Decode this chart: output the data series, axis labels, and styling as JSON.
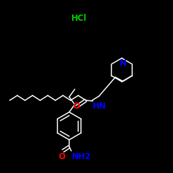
{
  "background_color": "#000000",
  "bond_color": "#ffffff",
  "N_color": "#0000ff",
  "O_color": "#ff0000",
  "HCl_color": "#00cc00",
  "label_HCl": "HCl",
  "label_N": "N",
  "label_O1": "O",
  "label_NH": "HN",
  "label_O2": "O",
  "label_NH2": "NH2",
  "figsize": [
    2.5,
    2.5
  ],
  "dpi": 100
}
